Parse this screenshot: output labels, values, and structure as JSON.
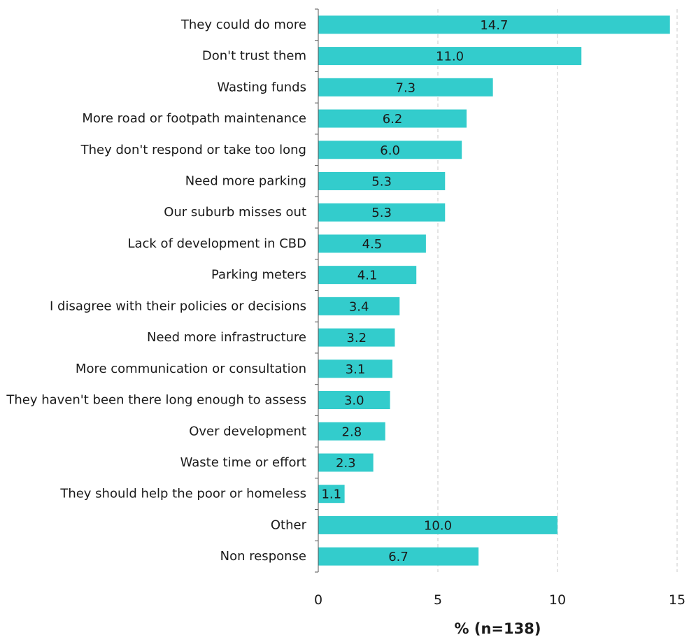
{
  "chart_data": {
    "type": "bar",
    "orientation": "horizontal",
    "categories": [
      "They could do more",
      "Don't trust them",
      "Wasting funds",
      "More road or footpath maintenance",
      "They don't respond or take too long",
      "Need more parking",
      "Our suburb misses out",
      "Lack of development in CBD",
      "Parking meters",
      "I disagree with their policies or decisions",
      "Need more infrastructure",
      "More communication or consultation",
      "They haven't been there long enough to assess",
      "Over development",
      "Waste time or effort",
      "They should help the poor or homeless",
      "Other",
      "Non response"
    ],
    "values": [
      14.7,
      11.0,
      7.3,
      6.2,
      6.0,
      5.3,
      5.3,
      4.5,
      4.1,
      3.4,
      3.2,
      3.1,
      3.0,
      2.8,
      2.3,
      1.1,
      10.0,
      6.7
    ],
    "value_labels": [
      "14.7",
      "11.0",
      "7.3",
      "6.2",
      "6.0",
      "5.3",
      "5.3",
      "4.5",
      "4.1",
      "3.4",
      "3.2",
      "3.1",
      "3.0",
      "2.8",
      "2.3",
      "1.1",
      "10.0",
      "6.7"
    ],
    "xlabel": "% (n=138)",
    "xlim": [
      0,
      15
    ],
    "xticks": [
      0,
      5,
      10,
      15
    ],
    "xtick_labels": [
      "0",
      "5",
      "10",
      "15"
    ],
    "grid": "vertical dashed",
    "bar_color": "#33CCCC"
  }
}
